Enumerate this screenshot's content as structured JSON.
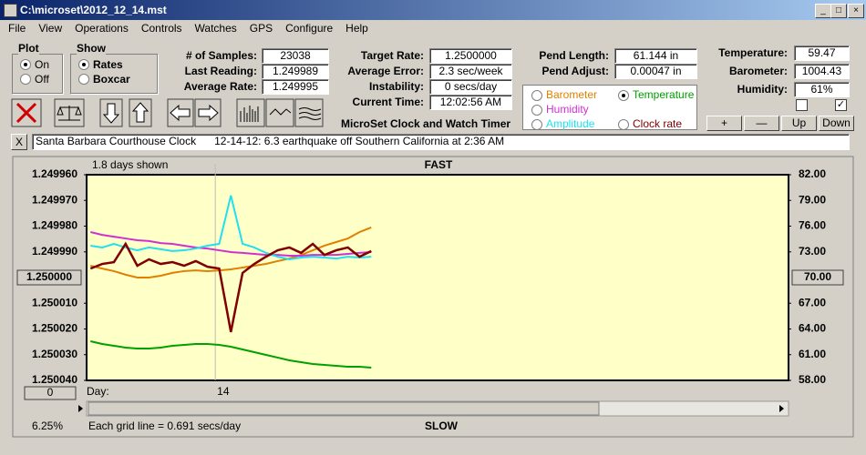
{
  "window": {
    "title": "C:\\microset\\2012_12_14.mst"
  },
  "menu": [
    "File",
    "View",
    "Operations",
    "Controls",
    "Watches",
    "GPS",
    "Configure",
    "Help"
  ],
  "plot_group": {
    "title": "Plot",
    "options": [
      "On",
      "Off"
    ],
    "selected": 0
  },
  "show_group": {
    "title": "Show",
    "options": [
      "Rates",
      "Boxcar"
    ],
    "selected": 0
  },
  "fields": [
    {
      "label": "# of Samples:",
      "value": "23038"
    },
    {
      "label": "Last Reading:",
      "value": "1.249989"
    },
    {
      "label": "Average Rate:",
      "value": "1.249995"
    },
    {
      "label": "Target Rate:",
      "value": "1.2500000"
    },
    {
      "label": "Average Error:",
      "value": "2.3 sec/week"
    },
    {
      "label": "Instability:",
      "value": "0 secs/day"
    },
    {
      "label": "Current Time:",
      "value": "12:02:56 AM"
    },
    {
      "label": "Pend Length:",
      "value": "61.144 in"
    },
    {
      "label": "Pend Adjust:",
      "value": "0.00047 in"
    },
    {
      "label": "Temperature:",
      "value": "59.47"
    },
    {
      "label": "Barometer:",
      "value": "1004.43"
    },
    {
      "label": "Humidity:",
      "value": "61%"
    }
  ],
  "app_title": "MicroSet Clock and Watch Timer",
  "buttons": [
    "+",
    "—",
    "Up",
    "Down"
  ],
  "note": {
    "close": "X",
    "text": "Santa Barbara Courthouse Clock      12-14-12: 6.3 earthquake off Southern California at 2:36 AM"
  },
  "chart_data": {
    "type": "line",
    "days_shown": "1.8 days shown",
    "top_label": "FAST",
    "bottom_label": "SLOW",
    "x_label": "Day:",
    "offset_button": "0",
    "percent": "6.25%",
    "grid_note": "Each grid line = 0.691 secs/day",
    "selected_series": 1,
    "x": [
      13.68,
      13.71,
      13.74,
      13.77,
      13.8,
      13.83,
      13.86,
      13.89,
      13.92,
      13.95,
      13.98,
      14.01,
      14.04,
      14.07,
      14.1,
      14.13,
      14.16,
      14.19,
      14.22,
      14.25,
      14.28,
      14.31,
      14.34,
      14.37,
      14.4
    ],
    "xlim": [
      13.67,
      15.47
    ],
    "xticks": [
      14
    ],
    "ylim": [
      1.25004,
      1.24996
    ],
    "yticks": [
      {
        "value": 1.24996,
        "label": "1.249960"
      },
      {
        "value": 1.24997,
        "label": "1.249970"
      },
      {
        "value": 1.24998,
        "label": "1.249980"
      },
      {
        "value": 1.24999,
        "label": "1.249990"
      },
      {
        "value": 1.25001,
        "label": "1.250010"
      },
      {
        "value": 1.25002,
        "label": "1.250020"
      },
      {
        "value": 1.25003,
        "label": "1.250030"
      },
      {
        "value": 1.25004,
        "label": "1.250040"
      }
    ],
    "y_ref": {
      "value": 1.25,
      "label": "1.250000"
    },
    "y2lim": [
      58,
      82
    ],
    "y2ticks": [
      {
        "value": 82,
        "label": "82.00"
      },
      {
        "value": 79,
        "label": "79.00"
      },
      {
        "value": 76,
        "label": "76.00"
      },
      {
        "value": 73,
        "label": "73.00"
      },
      {
        "value": 67,
        "label": "67.00"
      },
      {
        "value": 64,
        "label": "64.00"
      },
      {
        "value": 61,
        "label": "61.00"
      },
      {
        "value": 58,
        "label": "58.00"
      }
    ],
    "y2_ref": {
      "value": 70,
      "label": "70.00"
    },
    "series": [
      {
        "name": "Barometer",
        "color": "#e08000",
        "values": [
          1.2499954,
          1.2499965,
          1.2499975,
          1.2499989,
          1.25,
          1.25,
          1.2499993,
          1.2499982,
          1.2499975,
          1.2499972,
          1.2499975,
          1.2499972,
          1.2499968,
          1.2499961,
          1.2499954,
          1.2499947,
          1.2499936,
          1.2499926,
          1.2499912,
          1.2499894,
          1.2499876,
          1.2499862,
          1.2499848,
          1.2499823,
          1.2499805
        ]
      },
      {
        "name": "Temperature",
        "color": "#00a000",
        "axis": "y2",
        "values": [
          62.57,
          62.25,
          62.04,
          61.82,
          61.72,
          61.72,
          61.82,
          62.04,
          62.14,
          62.25,
          62.25,
          62.14,
          61.93,
          61.61,
          61.29,
          60.97,
          60.66,
          60.34,
          60.12,
          59.91,
          59.81,
          59.7,
          59.59,
          59.59,
          59.49
        ]
      },
      {
        "name": "Humidity",
        "color": "#d030d0",
        "values": [
          1.2499823,
          1.2499834,
          1.2499841,
          1.2499848,
          1.2499855,
          1.2499858,
          1.2499866,
          1.2499869,
          1.2499876,
          1.2499883,
          1.2499887,
          1.2499894,
          1.2499901,
          1.2499904,
          1.2499908,
          1.2499912,
          1.2499912,
          1.2499915,
          1.2499915,
          1.2499912,
          1.2499912,
          1.2499912,
          1.2499908,
          1.2499904,
          1.2499901
        ]
      },
      {
        "name": "Amplitude",
        "color": "#20e0f0",
        "values": [
          1.2499876,
          1.2499883,
          1.2499869,
          1.2499883,
          1.2499894,
          1.2499883,
          1.249989,
          1.2499897,
          1.2499894,
          1.2499887,
          1.2499876,
          1.2499869,
          1.2499681,
          1.2499869,
          1.2499883,
          1.2499904,
          1.2499919,
          1.2499929,
          1.2499922,
          1.2499919,
          1.2499922,
          1.2499926,
          1.2499919,
          1.2499922,
          1.2499919
        ]
      },
      {
        "name": "Clock rate",
        "color": "#800000",
        "values": [
          1.2499965,
          1.2499947,
          1.249994,
          1.2499869,
          1.2499954,
          1.2499929,
          1.2499947,
          1.249994,
          1.2499954,
          1.2499936,
          1.2499958,
          1.2499965,
          1.2500212,
          1.2499982,
          1.2499947,
          1.2499919,
          1.2499894,
          1.2499883,
          1.2499904,
          1.2499869,
          1.2499912,
          1.2499894,
          1.2499883,
          1.2499919,
          1.2499897
        ]
      }
    ]
  }
}
